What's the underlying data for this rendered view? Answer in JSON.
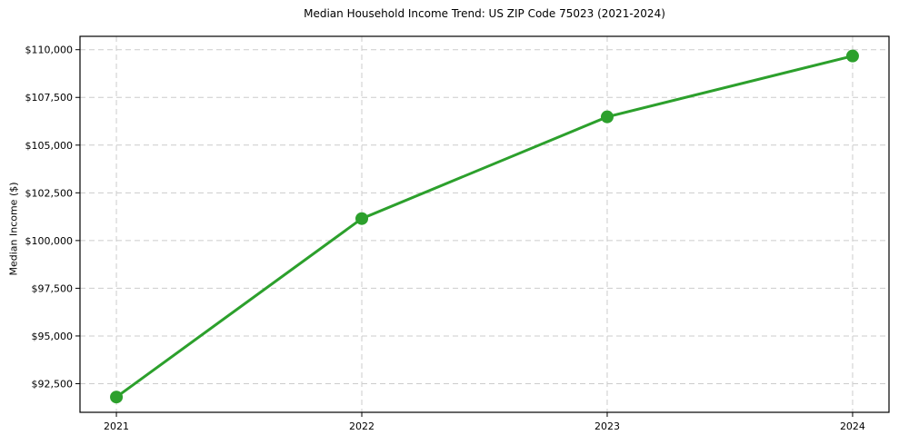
{
  "chart_data": {
    "type": "line",
    "title": "Median Household Income Trend: US ZIP Code 75023 (2021-2024)",
    "xlabel": "",
    "ylabel": "Median Income ($)",
    "categories": [
      "2021",
      "2022",
      "2023",
      "2024"
    ],
    "series": [
      {
        "name": "Median Household Income",
        "values": [
          91800,
          101150,
          106480,
          109670
        ]
      }
    ],
    "y_ticks": [
      {
        "value": 92500,
        "label": "$92,500"
      },
      {
        "value": 95000,
        "label": "$95,000"
      },
      {
        "value": 97500,
        "label": "$97,500"
      },
      {
        "value": 100000,
        "label": "$100,000"
      },
      {
        "value": 102500,
        "label": "$102,500"
      },
      {
        "value": 105000,
        "label": "$105,000"
      },
      {
        "value": 107500,
        "label": "$107,500"
      },
      {
        "value": 110000,
        "label": "$110,000"
      }
    ],
    "ylim": [
      91000,
      110700
    ],
    "grid": true,
    "grid_style": "dashed",
    "legend": "none",
    "colors": {
      "line": "#2ca02c",
      "marker": "#2ca02c",
      "grid": "#cccccc",
      "spine": "#000000",
      "background": "#ffffff",
      "text": "#000000"
    }
  }
}
